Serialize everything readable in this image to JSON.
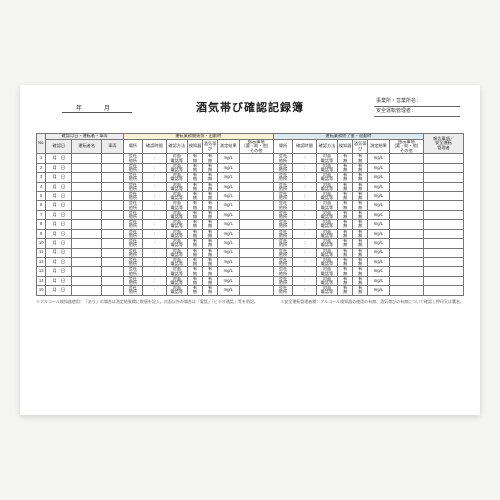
{
  "title": "酒気帯び確認記録簿",
  "date_label": "年　月",
  "meta": {
    "line1": "事業所・営業所名：",
    "line2": "安全運転管理者："
  },
  "groups": {
    "g1": "確認月日・運転者・車両",
    "g2": "運転業務開始前・出勤時",
    "g3": "運転業務終了後・退勤時",
    "g4": "確認欄"
  },
  "sub": {
    "no": "No.",
    "date": "確認日",
    "driver": "運転者名",
    "vehicle": "車両",
    "place": "場所",
    "time": "確認時間",
    "method": "確認方法",
    "detector": "検知器",
    "drunk": "酒気帯び",
    "result": "測定結果",
    "instruct": "指示事項\n(要・助・他)\nその他",
    "place2": "場所",
    "time2": "確認時間",
    "method2": "確認方法",
    "detector2": "検知器",
    "drunk2": "酒気帯び",
    "result2": "測定結果",
    "instruct2": "指示事項\n(要・助・他)\nその他",
    "report": "報告事項／\n安全運転\n管理者"
  },
  "cell_presets": {
    "date": "月　日",
    "place": "会社\n他所",
    "method": "対面\n電話等",
    "yn": "有\n無",
    "result": "mg/L"
  },
  "row_count": 15,
  "colors": {
    "group_gray": "#ededed",
    "group_yellow": "#f8f3d6",
    "group_blue": "#dce9ef",
    "border": "#777777",
    "sheet_bg": "#ffffff",
    "page_bg": "#f5f5f3"
  },
  "footnote_left": "※アルコール検知器使用：「あり」の場合は測定結果欄に数値を記入。対面以外の場合は「電話」「ビデオ通話」等を明記。",
  "footnote_right": "※安全運転管理者欄：アルコール検知器の使用の有無、酒気帯びの有無について確認し押印又は署名。"
}
